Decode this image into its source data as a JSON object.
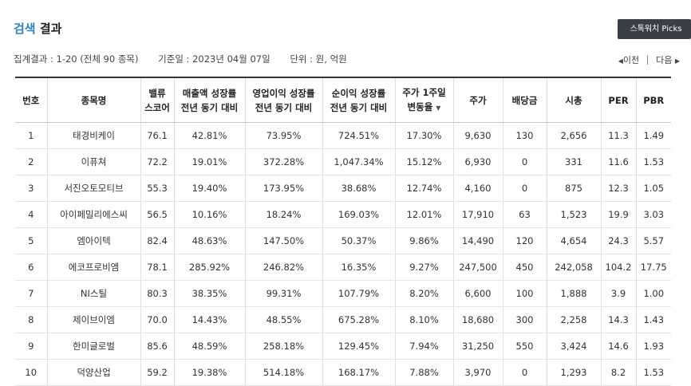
{
  "header": {
    "title_accent": "검색",
    "title_rest": "결과",
    "picks_button": "스톡워치 Picks"
  },
  "info": {
    "result": "집계결과 : 1-20 (전체 90 종목)",
    "date": "기준일 : 2023년 04월 07일",
    "unit": "단위 : 원, 억원"
  },
  "pager": {
    "prev_arrow": "◀",
    "prev": "이전",
    "next": "다음",
    "next_arrow": "▶"
  },
  "table": {
    "headers": [
      [
        "번호"
      ],
      [
        "종목명"
      ],
      [
        "밸류",
        "스코어"
      ],
      [
        "매출액 성장률",
        "전년 동기 대비"
      ],
      [
        "영업이익 성장률",
        "전년 동기 대비"
      ],
      [
        "순이익 성장률",
        "전년 동기 대비"
      ],
      [
        "주가 1주일",
        "변동율"
      ],
      [
        "주가"
      ],
      [
        "배당금"
      ],
      [
        "시총"
      ],
      [
        "PER"
      ],
      [
        "PBR"
      ]
    ],
    "sort_indicator": "▼",
    "rows": [
      [
        "1",
        "태경비케이",
        "76.1",
        "42.81%",
        "73.95%",
        "724.51%",
        "17.30%",
        "9,630",
        "130",
        "2,656",
        "11.3",
        "1.49"
      ],
      [
        "2",
        "이퓨쳐",
        "72.2",
        "19.01%",
        "372.28%",
        "1,047.34%",
        "15.12%",
        "6,930",
        "0",
        "331",
        "11.6",
        "1.53"
      ],
      [
        "3",
        "서진오토모티브",
        "55.3",
        "19.40%",
        "173.95%",
        "38.68%",
        "12.74%",
        "4,160",
        "0",
        "875",
        "12.3",
        "1.05"
      ],
      [
        "4",
        "아이페밀리에스씨",
        "56.5",
        "10.16%",
        "18.24%",
        "169.03%",
        "12.01%",
        "17,910",
        "63",
        "1,523",
        "19.9",
        "3.03"
      ],
      [
        "5",
        "엠아이텍",
        "82.4",
        "48.63%",
        "147.50%",
        "50.37%",
        "9.86%",
        "14,490",
        "120",
        "4,654",
        "24.3",
        "5.57"
      ],
      [
        "6",
        "에코프로비엠",
        "78.1",
        "285.92%",
        "246.82%",
        "16.35%",
        "9.27%",
        "247,500",
        "450",
        "242,058",
        "104.2",
        "17.75"
      ],
      [
        "7",
        "NI스틸",
        "80.3",
        "38.35%",
        "99.31%",
        "107.79%",
        "8.20%",
        "6,600",
        "100",
        "1,888",
        "3.9",
        "1.00"
      ],
      [
        "8",
        "제이브이엠",
        "70.0",
        "14.43%",
        "48.55%",
        "675.28%",
        "8.10%",
        "18,680",
        "300",
        "2,258",
        "14.3",
        "1.43"
      ],
      [
        "9",
        "한미글로벌",
        "85.6",
        "48.59%",
        "258.18%",
        "129.45%",
        "7.94%",
        "31,250",
        "550",
        "3,424",
        "14.6",
        "1.93"
      ],
      [
        "10",
        "덕양산업",
        "59.2",
        "19.38%",
        "514.18%",
        "168.17%",
        "7.88%",
        "3,970",
        "0",
        "1,293",
        "8.2",
        "1.53"
      ]
    ]
  }
}
